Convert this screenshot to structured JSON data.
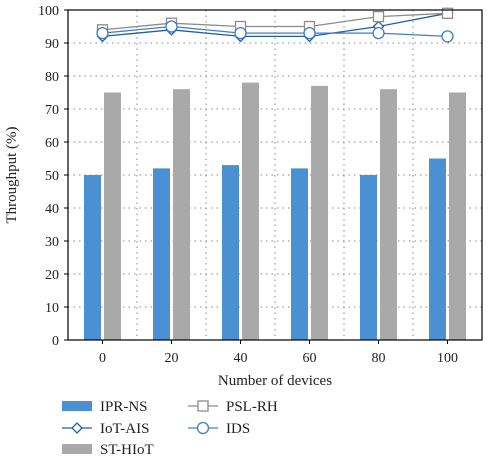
{
  "chart_data": {
    "type": "bar",
    "title": "",
    "xlabel": "Number of devices",
    "ylabel": "Throughput (%)",
    "ylim": [
      0,
      100
    ],
    "yticks": [
      0,
      10,
      20,
      30,
      40,
      50,
      60,
      70,
      80,
      90,
      100
    ],
    "categories": [
      "0",
      "20",
      "40",
      "60",
      "80",
      "100"
    ],
    "grid": true,
    "legend_position": "bottom",
    "bar_series": [
      {
        "name": "IPR-NS",
        "color": "#4a90d2",
        "values": [
          50,
          52,
          53,
          52,
          50,
          55
        ]
      },
      {
        "name": "ST-HIoT",
        "color": "#a9a9a9",
        "values": [
          75,
          76,
          78,
          77,
          76,
          75
        ]
      }
    ],
    "line_series": [
      {
        "name": "IoT-AIS",
        "marker": "diamond",
        "color": "#1f5fa8",
        "values": [
          92,
          94,
          92,
          92,
          95,
          99
        ]
      },
      {
        "name": "PSL-RH",
        "marker": "square",
        "color": "#8c8c8c",
        "values": [
          94,
          96,
          95,
          95,
          98,
          99
        ]
      },
      {
        "name": "IDS",
        "marker": "circle",
        "color": "#3f7fc4",
        "values": [
          93,
          95,
          93,
          93,
          93,
          92
        ]
      }
    ]
  }
}
